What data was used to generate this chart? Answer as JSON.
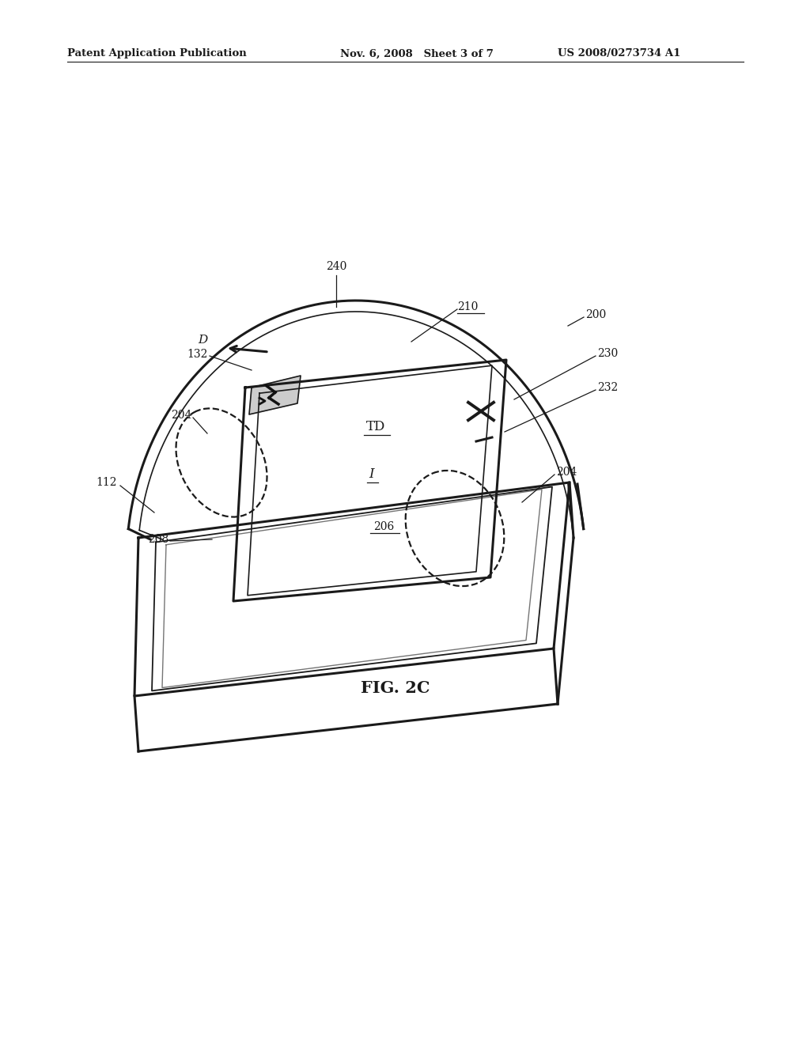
{
  "bg_color": "#ffffff",
  "line_color": "#1a1a1a",
  "header_left": "Patent Application Publication",
  "header_mid": "Nov. 6, 2008   Sheet 3 of 7",
  "header_right": "US 2008/0273734 A1",
  "fig_label": "FIG. 2C"
}
